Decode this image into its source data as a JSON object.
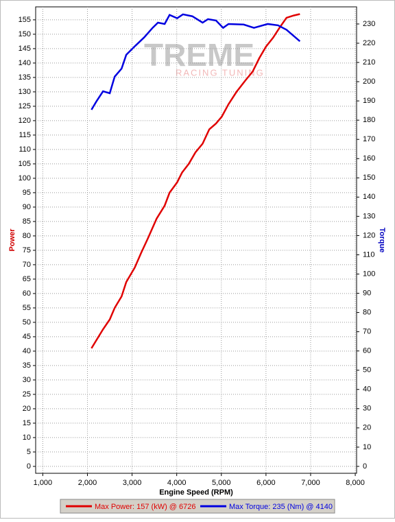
{
  "chart_data": {
    "type": "line",
    "watermark": [
      "TREME",
      "RACING TUNING"
    ],
    "xlabel": "Engine Speed (RPM)",
    "ylabel": "Power",
    "y2label": "Torque",
    "xlim": [
      840,
      8030
    ],
    "ylim": [
      -2.4,
      159.5
    ],
    "y2lim": [
      -3.6,
      238.9
    ],
    "grid": true,
    "xticks": [
      {
        "value": 1000,
        "label": "1,000"
      },
      {
        "value": 2000,
        "label": "2,000"
      },
      {
        "value": 3000,
        "label": "3,000"
      },
      {
        "value": 4000,
        "label": "4,000"
      },
      {
        "value": 5000,
        "label": "5,000"
      },
      {
        "value": 6000,
        "label": "6,000"
      },
      {
        "value": 7000,
        "label": "7,000"
      },
      {
        "value": 8000,
        "label": "8,000"
      }
    ],
    "yticks": [
      0,
      5,
      10,
      15,
      20,
      25,
      30,
      35,
      40,
      45,
      50,
      55,
      60,
      65,
      70,
      75,
      80,
      85,
      90,
      95,
      100,
      105,
      110,
      115,
      120,
      125,
      130,
      135,
      140,
      145,
      150,
      155
    ],
    "y2ticks": [
      0,
      10,
      20,
      30,
      40,
      50,
      60,
      70,
      80,
      90,
      100,
      110,
      120,
      130,
      140,
      150,
      160,
      170,
      180,
      190,
      200,
      210,
      220,
      230
    ],
    "series": [
      {
        "name": "Max Power: 157 (kW) @ 6726",
        "color": "#e00000",
        "x": [
          2090,
          2350,
          2500,
          2610,
          2765,
          2870,
          3060,
          3200,
          3350,
          3550,
          3730,
          3840,
          4010,
          4120,
          4270,
          4420,
          4580,
          4730,
          4880,
          5010,
          5160,
          5340,
          5540,
          5700,
          5850,
          6000,
          6160,
          6310,
          6460,
          6620,
          6760
        ],
        "values": [
          41,
          47.6,
          51,
          55,
          59,
          64,
          69,
          74,
          79,
          86,
          90.5,
          95,
          98.6,
          102,
          105,
          109,
          112,
          117,
          119,
          121.4,
          125.7,
          130,
          134,
          137,
          141.7,
          145.7,
          148.8,
          152.4,
          155.7,
          156.5,
          157
        ]
      },
      {
        "name": "Max Torque: 235 (Nm) @ 4140",
        "color": "#0000e0",
        "axis": "y2",
        "x": [
          2090,
          2200,
          2350,
          2500,
          2610,
          2765,
          2870,
          3070,
          3270,
          3460,
          3580,
          3730,
          3840,
          4010,
          4140,
          4350,
          4580,
          4700,
          4880,
          5040,
          5160,
          5500,
          5730,
          6040,
          6270,
          6460,
          6760
        ],
        "values": [
          185.4,
          189.7,
          195,
          194,
          202.6,
          206.8,
          214,
          218.6,
          223,
          228,
          230.7,
          230,
          234.7,
          233,
          235,
          234,
          230.7,
          232.5,
          231.8,
          228,
          230,
          229.7,
          228,
          230,
          229.3,
          227,
          221
        ]
      }
    ]
  }
}
